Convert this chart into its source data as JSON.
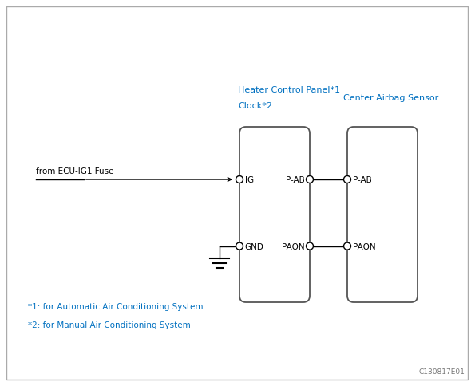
{
  "bg_color": "#ffffff",
  "blue": "#0070C0",
  "black": "#000000",
  "gray": "#777777",
  "title_label1": "Heater Control Panel*1",
  "title_label2": "Clock*2",
  "title_label3": "Center Airbag Sensor",
  "from_label": "from ECU-IG1 Fuse",
  "ig_label": "IG",
  "gnd_label": "GND",
  "pab_label_left": "P-AB",
  "pab_label_right": "P-AB",
  "paon_label_left": "PAON",
  "paon_label_right": "PAON",
  "note1": "*1: for Automatic Air Conditioning System",
  "note2": "*2: for Manual Air Conditioning System",
  "diagram_id": "C130817E01",
  "b1x": 0.5,
  "b1y": 0.25,
  "b1w": 0.14,
  "b1h": 0.52,
  "b2x": 0.73,
  "b2y": 0.25,
  "b2w": 0.14,
  "b2h": 0.52
}
